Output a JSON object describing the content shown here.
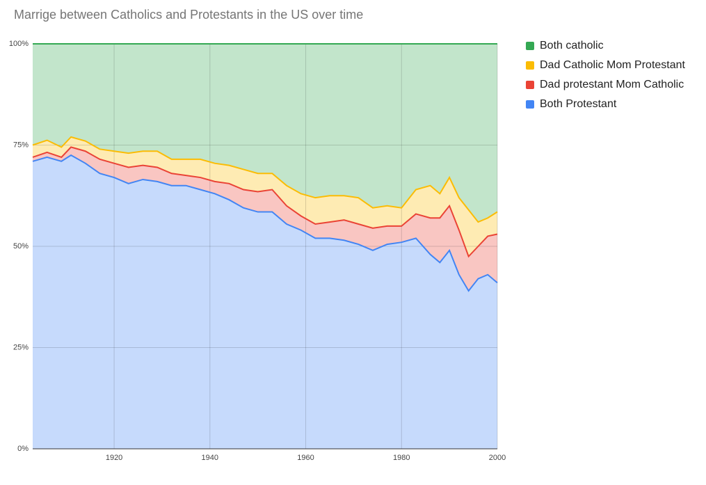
{
  "chart_data": {
    "type": "stacked_area_100",
    "title": "Marrige between Catholics and Protestants in the US over time",
    "x": [
      1903,
      1906,
      1909,
      1911,
      1914,
      1917,
      1920,
      1923,
      1926,
      1929,
      1932,
      1935,
      1938,
      1941,
      1944,
      1947,
      1950,
      1953,
      1956,
      1959,
      1962,
      1965,
      1968,
      1971,
      1974,
      1977,
      1980,
      1983,
      1986,
      1988,
      1990,
      1992,
      1994,
      1996,
      1998,
      2000
    ],
    "series": [
      {
        "name": "Both catholic",
        "color": "#34a853",
        "values": [
          25,
          23.8,
          25.5,
          23,
          24,
          26,
          26.5,
          27,
          26.5,
          26.5,
          28.5,
          28.5,
          28.5,
          29.5,
          30,
          31,
          32,
          32,
          35,
          37,
          38,
          37.5,
          37.5,
          38,
          40.5,
          40,
          40.5,
          36,
          35,
          37,
          33,
          38,
          41,
          44,
          43,
          41.5
        ]
      },
      {
        "name": "Dad Catholic Mom Protestant",
        "color": "#fbbc04",
        "values": [
          3,
          3,
          2.5,
          2.5,
          2.5,
          2.5,
          3,
          3.5,
          3.5,
          4,
          3.5,
          4,
          4.5,
          4.5,
          4.5,
          5,
          4.5,
          4,
          5,
          5.5,
          6.5,
          6.5,
          6,
          6.5,
          5,
          5,
          4.5,
          6,
          8,
          6,
          7,
          8,
          11.5,
          6,
          4.5,
          5.5
        ]
      },
      {
        "name": "Dad protestant Mom Catholic",
        "color": "#ea4335",
        "values": [
          1,
          1.2,
          1,
          2,
          3,
          3.5,
          3.5,
          4,
          3.5,
          3.5,
          3,
          2.5,
          3,
          3,
          4,
          4.5,
          5,
          5.5,
          4.5,
          3.5,
          3.5,
          4,
          5,
          5,
          5.5,
          4.5,
          4,
          6,
          9,
          11,
          11,
          11,
          8.5,
          8,
          9.5,
          12
        ]
      },
      {
        "name": "Both Protestant",
        "color": "#4285f4",
        "values": [
          71,
          72,
          71,
          72.5,
          70.5,
          68,
          67,
          65.5,
          66.5,
          66,
          65,
          65,
          64,
          63,
          61.5,
          59.5,
          58.5,
          58.5,
          55.5,
          54,
          52,
          52,
          51.5,
          50.5,
          49,
          50.5,
          51,
          52,
          48,
          46,
          49,
          43,
          39,
          42,
          43,
          41
        ]
      }
    ],
    "xlim": [
      1903,
      2000
    ],
    "xticks": [
      1920,
      1940,
      1960,
      1980,
      2000
    ],
    "ylim": [
      0,
      100
    ],
    "yticks": [
      {
        "value": 0,
        "label": "0%"
      },
      {
        "value": 25,
        "label": "25%"
      },
      {
        "value": 50,
        "label": "50%"
      },
      {
        "value": 75,
        "label": "75%"
      },
      {
        "value": 100,
        "label": "100%"
      }
    ],
    "grid": true,
    "legend": "right"
  }
}
